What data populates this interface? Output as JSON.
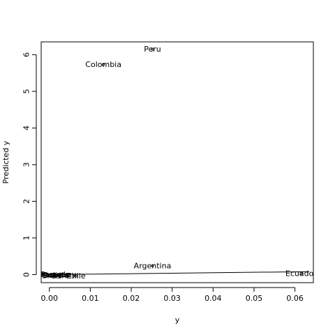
{
  "chart_data": {
    "type": "scatter",
    "title": "",
    "xlabel": "y",
    "ylabel": "Predicted y",
    "xlim": [
      -0.002,
      0.0645
    ],
    "ylim": [
      -0.22,
      6.35
    ],
    "xticks": [
      "0.00",
      "0.01",
      "0.02",
      "0.03",
      "0.04",
      "0.05",
      "0.06"
    ],
    "xtick_values": [
      0,
      0.01,
      0.02,
      0.03,
      0.04,
      0.05,
      0.06
    ],
    "yticks": [
      "0",
      "1",
      "2",
      "3",
      "4",
      "5",
      "6"
    ],
    "ytick_values": [
      0,
      1,
      2,
      3,
      4,
      5,
      6
    ],
    "grid": false,
    "points": [
      {
        "label": "Peru",
        "x": 0.0252,
        "y": 6.15
      },
      {
        "label": "Colombia",
        "x": 0.0132,
        "y": 5.73
      },
      {
        "label": "Argentina",
        "x": 0.0252,
        "y": 0.24
      },
      {
        "label": "Ecuador",
        "x": 0.0615,
        "y": 0.03
      },
      {
        "label": "Venezuela",
        "x": 0.0003,
        "y": 0.0
      },
      {
        "label": "Uruguay",
        "x": 0.0012,
        "y": 0.0
      },
      {
        "label": "Paraguay",
        "x": 0.0022,
        "y": 0.0
      },
      {
        "label": "Bolivia",
        "x": 0.0016,
        "y": -0.02
      },
      {
        "label": "Brazil",
        "x": 0.0008,
        "y": -0.03
      },
      {
        "label": "Chile",
        "x": 0.0065,
        "y": -0.04
      }
    ],
    "fit_line": {
      "x": [
        0,
        0.0635
      ],
      "y": [
        0.0,
        0.08
      ]
    }
  }
}
